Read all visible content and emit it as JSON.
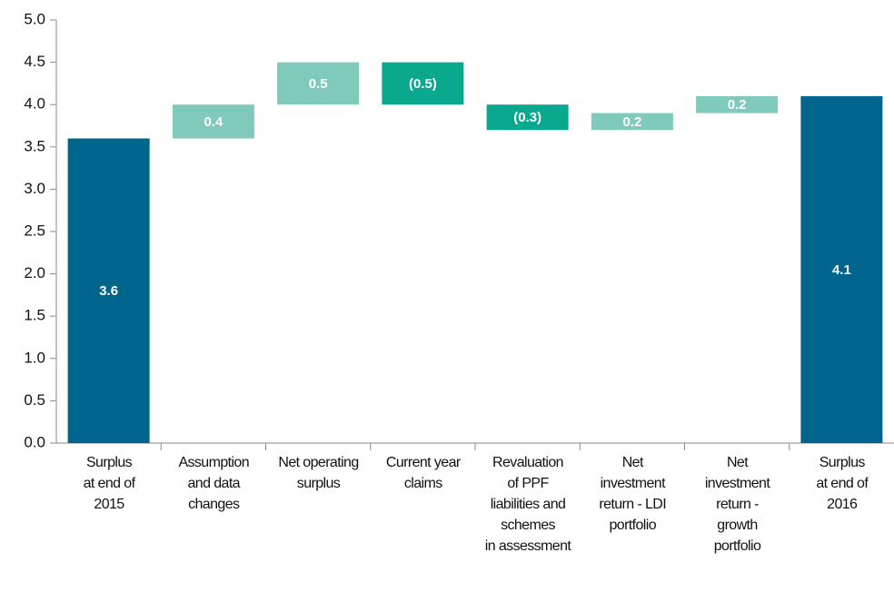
{
  "chart_data": {
    "type": "waterfall",
    "categories": [
      "Surplus\nat end of\n2015",
      "Assumption\nand data\nchanges",
      "Net operating\nsurplus",
      "Current year\nclaims",
      "Revaluation\nof PPF\nliabilities and\nschemes\nin assessment",
      "Net\ninvestment\nreturn - LDI\nportfolio",
      "Net\ninvestment\nreturn -\ngrowth\nportfolio",
      "Surplus\nat end of\n2016"
    ],
    "values": [
      3.6,
      0.4,
      0.5,
      -0.5,
      -0.3,
      0.2,
      0.2,
      4.1
    ],
    "value_labels": [
      "3.6",
      "0.4",
      "0.5",
      "(0.5)",
      "(0.3)",
      "0.2",
      "0.2",
      "4.1"
    ],
    "measure": [
      "total",
      "relative",
      "relative",
      "relative",
      "relative",
      "relative",
      "relative",
      "total"
    ],
    "colors": {
      "total": "#00658c",
      "increase": "#7fcaba",
      "decrease": "#0aa88e"
    },
    "ylim": [
      0,
      5
    ],
    "yticks": [
      {
        "value": 0,
        "label": "0.0"
      },
      0.5,
      {
        "value": 1,
        "label": "1.0"
      },
      1.5,
      {
        "value": 2,
        "label": "2.0"
      },
      2.5,
      {
        "value": 3,
        "label": "3.0"
      },
      3.5,
      {
        "value": 4,
        "label": "4.0"
      },
      4.5,
      {
        "value": 5,
        "label": "5.0"
      }
    ]
  }
}
